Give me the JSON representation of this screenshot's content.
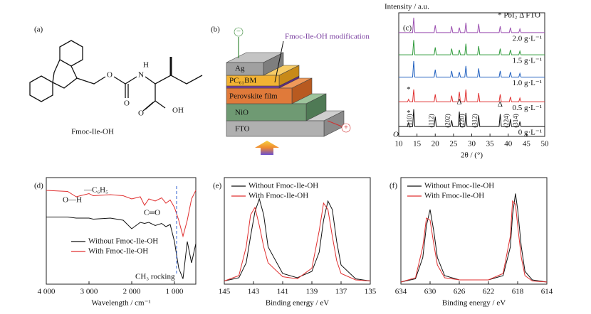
{
  "panels": {
    "a": {
      "label": "(a)",
      "name": "Fmoc-Ile-OH",
      "atoms": [
        "O",
        "O",
        "N",
        "H",
        "O",
        "OH"
      ]
    },
    "b": {
      "label": "(b)",
      "note": "Fmoc-Ile-OH modification",
      "layers": [
        "Ag",
        "PC₆₁BM",
        "Perovskite film",
        "NiO",
        "FTO"
      ],
      "minus": "−",
      "plus": "+"
    }
  },
  "chart_data": [
    {
      "type": "line",
      "panel_label": "(c)",
      "ylabel": "Intensity / a.u.",
      "xlabel": "2θ / (°)",
      "origin_label": "O",
      "legend_note": "* PbI₂  Δ FTO",
      "x": [
        10,
        12.4,
        12.7,
        13.0,
        13.8,
        14.1,
        14.4,
        19.7,
        20.0,
        20.3,
        24.2,
        24.5,
        24.8,
        26.3,
        26.6,
        26.9,
        28.1,
        28.4,
        28.7,
        31.6,
        31.9,
        32.2,
        37.5,
        37.8,
        38.1,
        40.3,
        40.6,
        40.9,
        42.9,
        43.2,
        43.5,
        50
      ],
      "xlim": [
        10,
        50
      ],
      "xticks": [
        10,
        15,
        20,
        25,
        30,
        35,
        40,
        45,
        50
      ],
      "ylim": [
        0,
        100
      ],
      "peak_labels": [
        "(110)",
        "(112)",
        "(202)",
        "(220)",
        "(312)",
        "(224)",
        "(314)"
      ],
      "markers": [
        "*",
        "*",
        "Δ",
        "Δ"
      ],
      "series": [
        {
          "name": "2.0 g·L⁻¹",
          "color": "#9b4fb0",
          "values": [
            84,
            84,
            84,
            84,
            84,
            96,
            84,
            84,
            90,
            84,
            84,
            89,
            84,
            84,
            88,
            84,
            84,
            92,
            84,
            84,
            91,
            84,
            84,
            89,
            84,
            84,
            88,
            84,
            84,
            87,
            84,
            84
          ]
        },
        {
          "name": "1.5 g·L⁻¹",
          "color": "#2e9a3a",
          "values": [
            66,
            66,
            66,
            66,
            66,
            78,
            66,
            66,
            72,
            66,
            66,
            71,
            66,
            66,
            70,
            66,
            66,
            75,
            66,
            66,
            73,
            66,
            66,
            71,
            66,
            66,
            70,
            66,
            66,
            69,
            66,
            66
          ]
        },
        {
          "name": "1.0 g·L⁻¹",
          "color": "#1f5fbf",
          "values": [
            48,
            48,
            48,
            48,
            48,
            61,
            48,
            48,
            54,
            48,
            48,
            53,
            48,
            48,
            52,
            48,
            48,
            57,
            48,
            48,
            55,
            48,
            48,
            53,
            48,
            48,
            52,
            48,
            48,
            51,
            48,
            48
          ]
        },
        {
          "name": "0.5 g·L⁻¹",
          "color": "#e03030",
          "values": [
            28,
            28,
            30,
            28,
            28,
            38,
            28,
            28,
            34,
            28,
            28,
            33,
            28,
            28,
            36,
            28,
            28,
            38,
            28,
            28,
            35,
            28,
            28,
            34,
            28,
            28,
            32,
            28,
            28,
            31,
            28,
            28
          ]
        },
        {
          "name": "0 g·L⁻¹",
          "color": "#111111",
          "values": [
            8,
            8,
            11,
            8,
            8,
            22,
            8,
            8,
            16,
            8,
            8,
            13,
            8,
            8,
            20,
            8,
            8,
            19,
            8,
            8,
            17,
            8,
            8,
            18,
            8,
            8,
            14,
            8,
            8,
            12,
            8,
            8
          ]
        }
      ]
    },
    {
      "type": "line",
      "panel_label": "(d)",
      "xlabel": "Wavelength / cm⁻¹",
      "annotations": [
        "O—H",
        "—C₆H₅",
        "C═O",
        "CH₃ rocking"
      ],
      "x": [
        4000,
        3500,
        3300,
        3000,
        2900,
        2500,
        2200,
        2000,
        1800,
        1700,
        1600,
        1450,
        1300,
        1200,
        1100,
        1000,
        900,
        800,
        700,
        600,
        500
      ],
      "xlim": [
        4000,
        500
      ],
      "xticks": [
        {
          "value": 4000,
          "label": "4 000"
        },
        {
          "value": 3000,
          "label": "3 000"
        },
        {
          "value": 2000,
          "label": "2 000"
        },
        {
          "value": 1000,
          "label": "1 000"
        }
      ],
      "ylim": [
        0,
        100
      ],
      "series": [
        {
          "name": "Without Fmoc-Ile-OH",
          "color": "#111111",
          "values": [
            63,
            63,
            62,
            62,
            61,
            62,
            60,
            52,
            58,
            57,
            58,
            55,
            57,
            54,
            56,
            40,
            15,
            5,
            40,
            20,
            38
          ]
        },
        {
          "name": "With Fmoc-Ile-OH",
          "color": "#e03030",
          "values": [
            88,
            87,
            82,
            85,
            83,
            84,
            83,
            80,
            82,
            74,
            80,
            78,
            81,
            76,
            79,
            72,
            60,
            45,
            60,
            80,
            88
          ]
        }
      ]
    },
    {
      "type": "line",
      "panel_label": "(e)",
      "xlabel": "Binding energy / eV",
      "x": [
        145,
        144,
        143.5,
        143.2,
        142.9,
        142.6,
        142.3,
        142,
        141,
        140,
        139,
        138.5,
        138.2,
        137.9,
        137.6,
        137.3,
        137,
        136,
        135
      ],
      "xlim": [
        145,
        135
      ],
      "xticks": [
        145,
        143,
        141,
        139,
        137,
        135
      ],
      "ylim": [
        0,
        100
      ],
      "series": [
        {
          "name": "Without Fmoc-Ile-OH",
          "color": "#111111",
          "values": [
            3,
            6,
            20,
            45,
            68,
            80,
            65,
            35,
            10,
            6,
            12,
            30,
            60,
            78,
            70,
            40,
            18,
            5,
            3
          ]
        },
        {
          "name": "With Fmoc-Ile-OH",
          "color": "#e03030",
          "values": [
            3,
            8,
            35,
            65,
            72,
            55,
            35,
            20,
            7,
            5,
            15,
            50,
            76,
            70,
            45,
            22,
            10,
            4,
            3
          ]
        }
      ]
    },
    {
      "type": "line",
      "panel_label": "(f)",
      "xlabel": "Binding energy / eV",
      "x": [
        634,
        632,
        631,
        630.5,
        630,
        629.5,
        629,
        628,
        626,
        622,
        620,
        619,
        618.7,
        618.3,
        618,
        617.5,
        617,
        616,
        614
      ],
      "xlim": [
        634,
        614
      ],
      "xticks": [
        634,
        630,
        626,
        622,
        618,
        614
      ],
      "ylim": [
        0,
        100
      ],
      "series": [
        {
          "name": "Without Fmoc-Ile-OH",
          "color": "#111111",
          "values": [
            2,
            5,
            25,
            55,
            70,
            50,
            25,
            8,
            4,
            4,
            8,
            35,
            65,
            85,
            70,
            35,
            12,
            4,
            2
          ]
        },
        {
          "name": "With Fmoc-Ile-OH",
          "color": "#e03030",
          "values": [
            2,
            6,
            35,
            62,
            60,
            38,
            18,
            6,
            4,
            4,
            10,
            45,
            78,
            75,
            55,
            25,
            8,
            3,
            2
          ]
        }
      ]
    }
  ]
}
